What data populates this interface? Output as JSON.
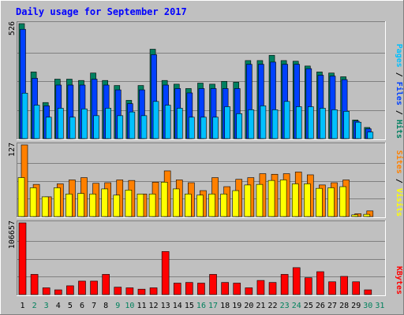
{
  "chart_data": {
    "type": "bar",
    "title": "Daily usage for September 2017",
    "categories": [
      "1",
      "2",
      "3",
      "4",
      "5",
      "6",
      "7",
      "8",
      "9",
      "10",
      "11",
      "12",
      "13",
      "14",
      "15",
      "16",
      "17",
      "18",
      "19",
      "20",
      "21",
      "22",
      "23",
      "24",
      "25",
      "26",
      "27",
      "28",
      "29",
      "30",
      "31"
    ],
    "weekend_categories": [
      "2",
      "3",
      "9",
      "10",
      "16",
      "17",
      "23",
      "24",
      "30",
      "31"
    ],
    "panels": [
      {
        "id": "hits",
        "ymax_label": "526",
        "ymax": 526,
        "legend": [
          {
            "text": "Pages",
            "color": "#00c0ff"
          },
          {
            "text": "Files",
            "color": "#0040ff"
          },
          {
            "text": "Hits",
            "color": "#008060"
          }
        ],
        "series": [
          {
            "name": "Hits",
            "color": "#008060",
            "values": [
              526,
              305,
              165,
              272,
              272,
              266,
              300,
              266,
              243,
              175,
              243,
              409,
              266,
              249,
              229,
              254,
              249,
              262,
              258,
              357,
              357,
              381,
              357,
              354,
              332,
              305,
              300,
              283,
              85,
              51,
              0
            ]
          },
          {
            "name": "Files",
            "color": "#0040ff",
            "values": [
              500,
              276,
              150,
              245,
              245,
              245,
              272,
              245,
              223,
              160,
              223,
              384,
              245,
              229,
              209,
              229,
              229,
              229,
              229,
              340,
              340,
              350,
              340,
              340,
              320,
              290,
              286,
              270,
              80,
              45,
              0
            ]
          },
          {
            "name": "Pages",
            "color": "#00c0ff",
            "values": [
              208,
              153,
              98,
              139,
              98,
              136,
              105,
              139,
              105,
              122,
              105,
              170,
              153,
              139,
              98,
              98,
              98,
              146,
              114,
              132,
              150,
              132,
              170,
              146,
              146,
              139,
              132,
              125,
              75,
              30,
              0
            ]
          }
        ]
      },
      {
        "id": "visits",
        "ymax_label": "127",
        "ymax": 127,
        "legend": [
          {
            "text": "Sites",
            "color": "#ff8000"
          },
          {
            "text": "Visits",
            "color": "#ffff00"
          }
        ],
        "series": [
          {
            "name": "Visits",
            "color": "#ff8000",
            "values": [
              127,
              57,
              35,
              58,
              65,
              69,
              59,
              60,
              65,
              64,
              40,
              61,
              81,
              65,
              60,
              46,
              69,
              53,
              66,
              69,
              76,
              75,
              76,
              79,
              74,
              56,
              60,
              65,
              5,
              10,
              0
            ]
          },
          {
            "name": "Sites",
            "color": "#ffff00",
            "values": [
              69,
              51,
              35,
              51,
              40,
              41,
              40,
              49,
              38,
              47,
              40,
              40,
              61,
              49,
              40,
              38,
              40,
              40,
              46,
              56,
              57,
              64,
              65,
              58,
              58,
              50,
              51,
              53,
              3,
              4,
              0
            ]
          }
        ]
      },
      {
        "id": "kbytes",
        "ymax_label": "106657",
        "ymax": 106657,
        "legend": [
          {
            "text": "KBytes",
            "color": "#ff0000"
          }
        ],
        "series": [
          {
            "name": "KBytes",
            "color": "#ff0000",
            "values": [
              106657,
              30000,
              10000,
              7000,
              13000,
              20000,
              20000,
              30000,
              11000,
              10000,
              8000,
              10000,
              64000,
              17000,
              18000,
              17000,
              30000,
              18000,
              17000,
              10000,
              21000,
              18000,
              30000,
              40000,
              25000,
              34000,
              19000,
              27000,
              19000,
              7000,
              0
            ]
          }
        ]
      }
    ]
  }
}
